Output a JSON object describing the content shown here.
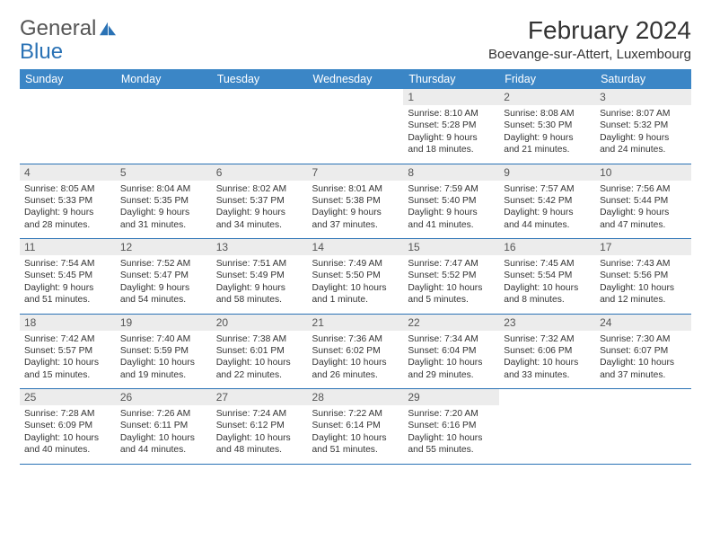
{
  "logo": {
    "text_general": "General",
    "text_blue": "Blue"
  },
  "title": "February 2024",
  "location": "Boevange-sur-Attert, Luxembourg",
  "colors": {
    "header_bg": "#3b86c6",
    "header_text": "#ffffff",
    "daynum_bg": "#ececec",
    "border": "#2a72b5",
    "logo_blue": "#2a72b5",
    "text": "#333333"
  },
  "typography": {
    "title_fontsize": 28,
    "location_fontsize": 15,
    "dayhead_fontsize": 12.5,
    "body_fontsize": 10.3
  },
  "day_names": [
    "Sunday",
    "Monday",
    "Tuesday",
    "Wednesday",
    "Thursday",
    "Friday",
    "Saturday"
  ],
  "weeks": [
    [
      null,
      null,
      null,
      null,
      {
        "n": "1",
        "sunrise": "8:10 AM",
        "sunset": "5:28 PM",
        "daylight": "9 hours and 18 minutes."
      },
      {
        "n": "2",
        "sunrise": "8:08 AM",
        "sunset": "5:30 PM",
        "daylight": "9 hours and 21 minutes."
      },
      {
        "n": "3",
        "sunrise": "8:07 AM",
        "sunset": "5:32 PM",
        "daylight": "9 hours and 24 minutes."
      }
    ],
    [
      {
        "n": "4",
        "sunrise": "8:05 AM",
        "sunset": "5:33 PM",
        "daylight": "9 hours and 28 minutes."
      },
      {
        "n": "5",
        "sunrise": "8:04 AM",
        "sunset": "5:35 PM",
        "daylight": "9 hours and 31 minutes."
      },
      {
        "n": "6",
        "sunrise": "8:02 AM",
        "sunset": "5:37 PM",
        "daylight": "9 hours and 34 minutes."
      },
      {
        "n": "7",
        "sunrise": "8:01 AM",
        "sunset": "5:38 PM",
        "daylight": "9 hours and 37 minutes."
      },
      {
        "n": "8",
        "sunrise": "7:59 AM",
        "sunset": "5:40 PM",
        "daylight": "9 hours and 41 minutes."
      },
      {
        "n": "9",
        "sunrise": "7:57 AM",
        "sunset": "5:42 PM",
        "daylight": "9 hours and 44 minutes."
      },
      {
        "n": "10",
        "sunrise": "7:56 AM",
        "sunset": "5:44 PM",
        "daylight": "9 hours and 47 minutes."
      }
    ],
    [
      {
        "n": "11",
        "sunrise": "7:54 AM",
        "sunset": "5:45 PM",
        "daylight": "9 hours and 51 minutes."
      },
      {
        "n": "12",
        "sunrise": "7:52 AM",
        "sunset": "5:47 PM",
        "daylight": "9 hours and 54 minutes."
      },
      {
        "n": "13",
        "sunrise": "7:51 AM",
        "sunset": "5:49 PM",
        "daylight": "9 hours and 58 minutes."
      },
      {
        "n": "14",
        "sunrise": "7:49 AM",
        "sunset": "5:50 PM",
        "daylight": "10 hours and 1 minute."
      },
      {
        "n": "15",
        "sunrise": "7:47 AM",
        "sunset": "5:52 PM",
        "daylight": "10 hours and 5 minutes."
      },
      {
        "n": "16",
        "sunrise": "7:45 AM",
        "sunset": "5:54 PM",
        "daylight": "10 hours and 8 minutes."
      },
      {
        "n": "17",
        "sunrise": "7:43 AM",
        "sunset": "5:56 PM",
        "daylight": "10 hours and 12 minutes."
      }
    ],
    [
      {
        "n": "18",
        "sunrise": "7:42 AM",
        "sunset": "5:57 PM",
        "daylight": "10 hours and 15 minutes."
      },
      {
        "n": "19",
        "sunrise": "7:40 AM",
        "sunset": "5:59 PM",
        "daylight": "10 hours and 19 minutes."
      },
      {
        "n": "20",
        "sunrise": "7:38 AM",
        "sunset": "6:01 PM",
        "daylight": "10 hours and 22 minutes."
      },
      {
        "n": "21",
        "sunrise": "7:36 AM",
        "sunset": "6:02 PM",
        "daylight": "10 hours and 26 minutes."
      },
      {
        "n": "22",
        "sunrise": "7:34 AM",
        "sunset": "6:04 PM",
        "daylight": "10 hours and 29 minutes."
      },
      {
        "n": "23",
        "sunrise": "7:32 AM",
        "sunset": "6:06 PM",
        "daylight": "10 hours and 33 minutes."
      },
      {
        "n": "24",
        "sunrise": "7:30 AM",
        "sunset": "6:07 PM",
        "daylight": "10 hours and 37 minutes."
      }
    ],
    [
      {
        "n": "25",
        "sunrise": "7:28 AM",
        "sunset": "6:09 PM",
        "daylight": "10 hours and 40 minutes."
      },
      {
        "n": "26",
        "sunrise": "7:26 AM",
        "sunset": "6:11 PM",
        "daylight": "10 hours and 44 minutes."
      },
      {
        "n": "27",
        "sunrise": "7:24 AM",
        "sunset": "6:12 PM",
        "daylight": "10 hours and 48 minutes."
      },
      {
        "n": "28",
        "sunrise": "7:22 AM",
        "sunset": "6:14 PM",
        "daylight": "10 hours and 51 minutes."
      },
      {
        "n": "29",
        "sunrise": "7:20 AM",
        "sunset": "6:16 PM",
        "daylight": "10 hours and 55 minutes."
      },
      null,
      null
    ]
  ],
  "labels": {
    "sunrise": "Sunrise:",
    "sunset": "Sunset:",
    "daylight": "Daylight:"
  }
}
